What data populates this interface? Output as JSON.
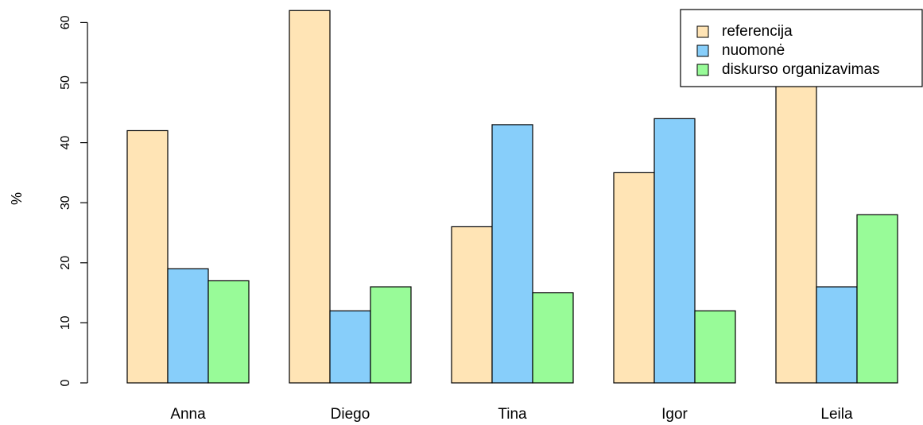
{
  "chart_data": {
    "type": "bar",
    "categories": [
      "Anna",
      "Diego",
      "Tina",
      "Igor",
      "Leila"
    ],
    "series": [
      {
        "name": "referencija",
        "color": "#FFE4B5",
        "values": [
          42,
          62,
          26,
          35,
          50
        ]
      },
      {
        "name": "nuomonė",
        "color": "#87CEFA",
        "values": [
          19,
          12,
          43,
          44,
          16
        ]
      },
      {
        "name": "diskurso organizavimas",
        "color": "#98FB98",
        "values": [
          17,
          16,
          15,
          12,
          28
        ]
      }
    ],
    "ylabel": "%",
    "ylim": [
      0,
      62
    ],
    "yticks": [
      0,
      10,
      20,
      30,
      40,
      50,
      60
    ],
    "legend": "top-right",
    "grid": false
  }
}
